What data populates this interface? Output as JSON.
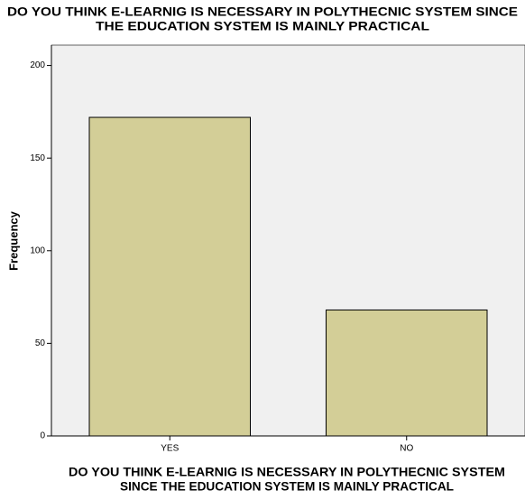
{
  "chart_data": {
    "type": "bar",
    "title": [
      "DO YOU THINK E-LEARNIG IS NECESSARY IN POLYTHECNIC SYSTEM SINCE",
      "THE EDUCATION SYSTEM IS MAINLY PRACTICAL"
    ],
    "x_label": [
      "DO YOU THINK E-LEARNIG IS NECESSARY IN POLYTHECNIC SYSTEM",
      "SINCE THE EDUCATION SYSTEM IS MAINLY PRACTICAL"
    ],
    "y_label": "Frequency",
    "categories": [
      "YES",
      "NO"
    ],
    "values": [
      172,
      68
    ],
    "color": "#d3ce97",
    "ylim": [
      0,
      211
    ],
    "yticks": [
      0,
      50,
      100,
      150,
      200
    ]
  }
}
